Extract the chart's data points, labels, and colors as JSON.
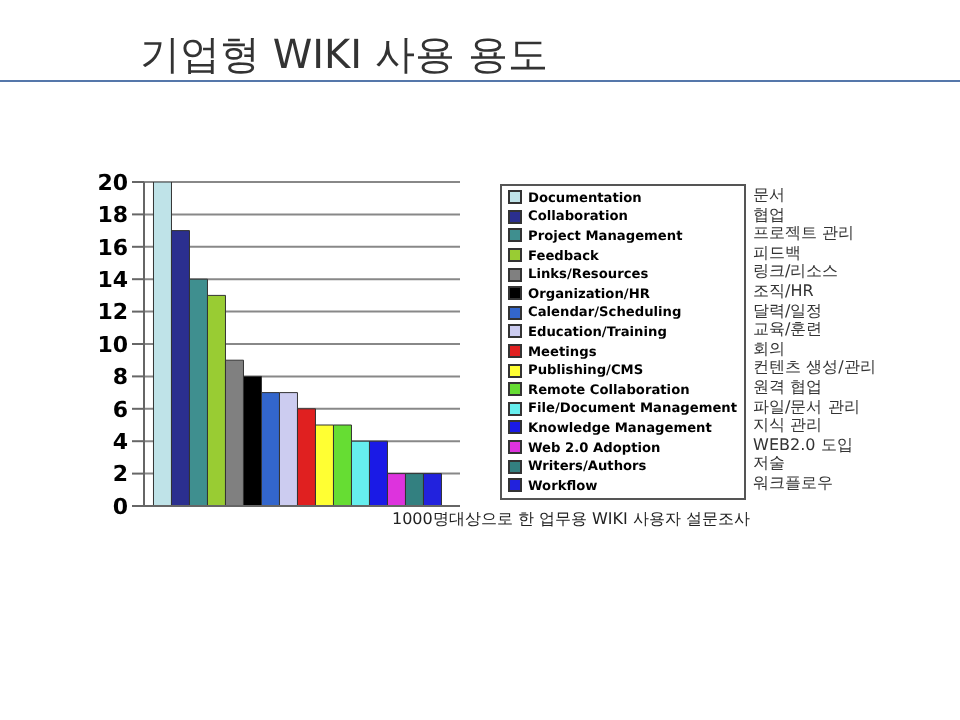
{
  "chart_data": {
    "type": "bar",
    "title": "기업형 WIKI 사용 용도",
    "categories": [
      null
    ],
    "series": [
      {
        "name": "Documentation",
        "color": "#bfe3e8",
        "values": [
          20
        ]
      },
      {
        "name": "Collaboration",
        "color": "#2b2f8f",
        "values": [
          17
        ]
      },
      {
        "name": "Project Management",
        "color": "#3f8f8f",
        "values": [
          14
        ]
      },
      {
        "name": "Feedback",
        "color": "#99cc33",
        "values": [
          13
        ]
      },
      {
        "name": "Links/Resources",
        "color": "#808080",
        "values": [
          9
        ]
      },
      {
        "name": "Organization/HR",
        "color": "#000000",
        "values": [
          8
        ]
      },
      {
        "name": "Calendar/Scheduling",
        "color": "#3366cc",
        "values": [
          7
        ]
      },
      {
        "name": "Education/Training",
        "color": "#ccccf0",
        "values": [
          7
        ]
      },
      {
        "name": "Meetings",
        "color": "#e02020",
        "values": [
          6
        ]
      },
      {
        "name": "Publishing/CMS",
        "color": "#ffff33",
        "values": [
          5
        ]
      },
      {
        "name": "Remote Collaboration",
        "color": "#66dd33",
        "values": [
          5
        ]
      },
      {
        "name": "File/Document Management",
        "color": "#66eeee",
        "values": [
          4
        ]
      },
      {
        "name": "Knowledge Management",
        "color": "#1a1ae6",
        "values": [
          4
        ]
      },
      {
        "name": "Web 2.0 Adoption",
        "color": "#dd33dd",
        "values": [
          2
        ]
      },
      {
        "name": "Writers/Authors",
        "color": "#338080",
        "values": [
          2
        ]
      },
      {
        "name": "Workflow",
        "color": "#2222dd",
        "values": [
          2
        ]
      }
    ],
    "annotations": [
      "문서",
      "협업",
      "프로젝트 관리",
      "피드백",
      "링크/리소스",
      "조직/HR",
      "달력/일정",
      "교육/훈련",
      "회의",
      "컨텐츠 생성/관리",
      "원격 협업",
      "파일/문서 관리",
      "지식 관리",
      "WEB2.0 도입",
      "저술",
      "워크플로우",
      "1000명대상으로 한 업무용 WIKI 사용자 설문조사"
    ],
    "ylim": [
      0,
      20
    ],
    "yticks": [
      0,
      2,
      4,
      6,
      8,
      10,
      12,
      14,
      16,
      18,
      20
    ],
    "grid": "y",
    "legend": "right",
    "tick_labels": "y"
  }
}
